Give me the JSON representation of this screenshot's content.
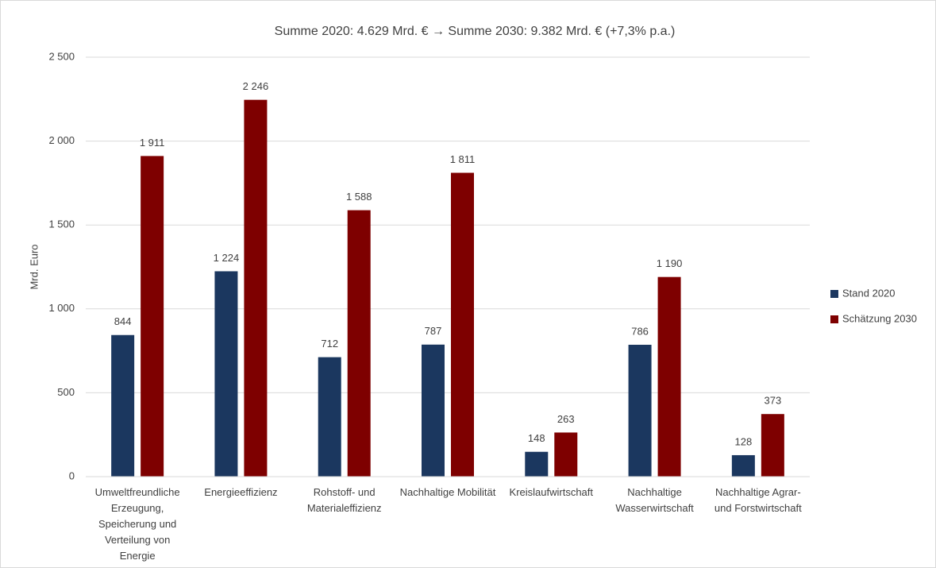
{
  "chart_data": {
    "type": "bar",
    "title": "Summe  2020: 4.629 Mrd. € → Summe 2030: 9.382 Mrd. € (+7,3% p.a.)",
    "y_label": "Mrd. Euro",
    "categories": [
      "Umweltfreundliche Erzeugung, Speicherung und Verteilung von Energie",
      "Energieeffizienz",
      "Rohstoff- und Materialeffizienz",
      "Nachhaltige Mobilität",
      "Kreislaufwirtschaft",
      "Nachhaltige Wasserwirtschaft",
      "Nachhaltige Agrar- und Forstwirtschaft"
    ],
    "series": [
      {
        "name": "Stand 2020",
        "color": "#1b375f",
        "values": [
          844,
          1224,
          712,
          787,
          148,
          786,
          128
        ],
        "value_labels": [
          "844",
          "1 224",
          "712",
          "787",
          "148",
          "786",
          "128"
        ]
      },
      {
        "name": "Schätzung 2030",
        "color": "#7e0000",
        "values": [
          1911,
          2246,
          1588,
          1811,
          263,
          1190,
          373
        ],
        "value_labels": [
          "1 911",
          "2 246",
          "1 588",
          "1 811",
          "263",
          "1 190",
          "373"
        ]
      }
    ],
    "ylim": [
      0,
      2500
    ],
    "yticks": [
      0,
      500,
      {
        "value": 1000,
        "label": "1 000"
      },
      {
        "value": 1500,
        "label": "1 500"
      },
      {
        "value": 2000,
        "label": "2 000"
      },
      {
        "value": 2500,
        "label": "2 500"
      }
    ],
    "grid": true,
    "legend": "right"
  }
}
